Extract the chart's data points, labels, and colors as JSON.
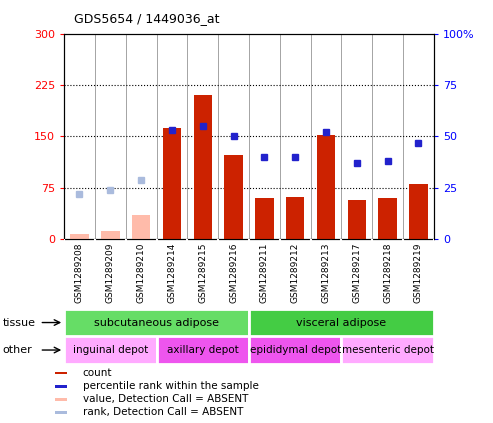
{
  "title": "GDS5654 / 1449036_at",
  "samples": [
    "GSM1289208",
    "GSM1289209",
    "GSM1289210",
    "GSM1289214",
    "GSM1289215",
    "GSM1289216",
    "GSM1289211",
    "GSM1289212",
    "GSM1289213",
    "GSM1289217",
    "GSM1289218",
    "GSM1289219"
  ],
  "count_values": [
    null,
    null,
    null,
    163,
    210,
    123,
    60,
    62,
    152,
    57,
    60,
    80
  ],
  "count_absent": [
    8,
    12,
    35,
    null,
    null,
    null,
    null,
    null,
    null,
    null,
    null,
    null
  ],
  "percentile_present": [
    null,
    null,
    null,
    53,
    55,
    50,
    40,
    40,
    52,
    37,
    38,
    47
  ],
  "percentile_absent": [
    22,
    24,
    29,
    null,
    null,
    null,
    null,
    null,
    null,
    null,
    null,
    null
  ],
  "ylim_left": [
    0,
    300
  ],
  "ylim_right": [
    0,
    100
  ],
  "yticks_left": [
    0,
    75,
    150,
    225,
    300
  ],
  "yticks_right": [
    0,
    25,
    50,
    75,
    100
  ],
  "ytick_labels_left": [
    "0",
    "75",
    "150",
    "225",
    "300"
  ],
  "ytick_labels_right": [
    "0",
    "25",
    "50",
    "75",
    "100%"
  ],
  "hlines": [
    75,
    150,
    225
  ],
  "tissue_groups": [
    {
      "label": "subcutaneous adipose",
      "start": 0,
      "end": 6,
      "color": "#66dd66"
    },
    {
      "label": "visceral adipose",
      "start": 6,
      "end": 12,
      "color": "#44cc44"
    }
  ],
  "other_groups": [
    {
      "label": "inguinal depot",
      "start": 0,
      "end": 3,
      "color": "#ffaaff"
    },
    {
      "label": "axillary depot",
      "start": 3,
      "end": 6,
      "color": "#ee55ee"
    },
    {
      "label": "epididymal depot",
      "start": 6,
      "end": 9,
      "color": "#ee55ee"
    },
    {
      "label": "mesenteric depot",
      "start": 9,
      "end": 12,
      "color": "#ffaaff"
    }
  ],
  "bar_color": "#cc2200",
  "bar_absent_color": "#ffbbaa",
  "dot_color": "#2222cc",
  "dot_absent_color": "#aabbdd",
  "legend_items": [
    {
      "label": "count",
      "color": "#cc2200"
    },
    {
      "label": "percentile rank within the sample",
      "color": "#2222cc"
    },
    {
      "label": "value, Detection Call = ABSENT",
      "color": "#ffbbaa"
    },
    {
      "label": "rank, Detection Call = ABSENT",
      "color": "#aabbdd"
    }
  ],
  "tissue_label": "tissue",
  "other_label": "other",
  "xtick_bg_color": "#cccccc",
  "plot_bg_color": "#ffffff"
}
